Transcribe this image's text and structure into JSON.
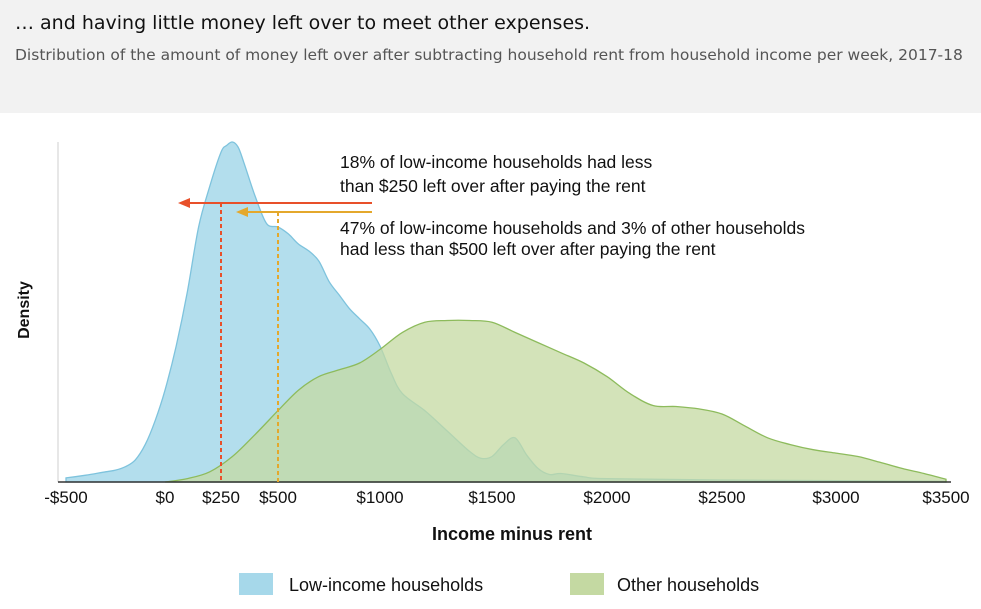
{
  "header": {
    "title": "… and having little money left over to meet other expenses.",
    "subtitle": "Distribution of the amount of money left over after subtracting household rent from household income per week, 2017-18"
  },
  "chart_data": {
    "type": "area",
    "xlabel": "Income minus rent",
    "ylabel": "Density",
    "xlim": [
      -500,
      3500
    ],
    "ylim": [
      0,
      1
    ],
    "x_ticks": [
      -500,
      0,
      250,
      500,
      1000,
      1500,
      2000,
      2500,
      3000,
      3500
    ],
    "x_tick_labels": [
      "-$500",
      "$0",
      "$250",
      "$500",
      "$1000",
      "$1500",
      "$2000",
      "$2500",
      "$3000",
      "$3500"
    ],
    "grid": false,
    "legend_position": "bottom",
    "series": [
      {
        "name": "Low-income households",
        "color": "#a6d8ea",
        "edge_color": "#7ec3dd",
        "points": [
          [
            -500,
            0.012
          ],
          [
            -400,
            0.02
          ],
          [
            -300,
            0.03
          ],
          [
            -250,
            0.035
          ],
          [
            -200,
            0.045
          ],
          [
            -150,
            0.065
          ],
          [
            -100,
            0.11
          ],
          [
            -50,
            0.18
          ],
          [
            0,
            0.27
          ],
          [
            50,
            0.4
          ],
          [
            100,
            0.56
          ],
          [
            150,
            0.75
          ],
          [
            200,
            0.87
          ],
          [
            250,
            0.97
          ],
          [
            275,
            0.99
          ],
          [
            300,
            1.0
          ],
          [
            325,
            0.985
          ],
          [
            350,
            0.94
          ],
          [
            400,
            0.84
          ],
          [
            450,
            0.76
          ],
          [
            500,
            0.75
          ],
          [
            550,
            0.73
          ],
          [
            600,
            0.7
          ],
          [
            650,
            0.68
          ],
          [
            700,
            0.65
          ],
          [
            750,
            0.59
          ],
          [
            800,
            0.55
          ],
          [
            850,
            0.51
          ],
          [
            900,
            0.48
          ],
          [
            950,
            0.45
          ],
          [
            1000,
            0.4
          ],
          [
            1050,
            0.32
          ],
          [
            1100,
            0.26
          ],
          [
            1200,
            0.21
          ],
          [
            1300,
            0.15
          ],
          [
            1400,
            0.09
          ],
          [
            1450,
            0.07
          ],
          [
            1500,
            0.075
          ],
          [
            1550,
            0.11
          ],
          [
            1600,
            0.13
          ],
          [
            1650,
            0.08
          ],
          [
            1700,
            0.04
          ],
          [
            1750,
            0.022
          ],
          [
            1800,
            0.025
          ],
          [
            1900,
            0.015
          ],
          [
            2000,
            0.01
          ],
          [
            2500,
            0.006
          ],
          [
            3000,
            0.004
          ],
          [
            3500,
            0.002
          ]
        ]
      },
      {
        "name": "Other households",
        "color": "#c4d9a2",
        "edge_color": "#8dbb5c",
        "points": [
          [
            0,
            0.0
          ],
          [
            100,
            0.01
          ],
          [
            200,
            0.03
          ],
          [
            300,
            0.075
          ],
          [
            400,
            0.14
          ],
          [
            500,
            0.21
          ],
          [
            600,
            0.27
          ],
          [
            700,
            0.31
          ],
          [
            800,
            0.33
          ],
          [
            900,
            0.35
          ],
          [
            1000,
            0.39
          ],
          [
            1100,
            0.44
          ],
          [
            1200,
            0.47
          ],
          [
            1300,
            0.475
          ],
          [
            1400,
            0.475
          ],
          [
            1500,
            0.47
          ],
          [
            1600,
            0.44
          ],
          [
            1700,
            0.41
          ],
          [
            1800,
            0.38
          ],
          [
            1900,
            0.35
          ],
          [
            2000,
            0.31
          ],
          [
            2100,
            0.26
          ],
          [
            2200,
            0.225
          ],
          [
            2300,
            0.222
          ],
          [
            2400,
            0.215
          ],
          [
            2500,
            0.2
          ],
          [
            2600,
            0.165
          ],
          [
            2700,
            0.13
          ],
          [
            2800,
            0.11
          ],
          [
            2900,
            0.095
          ],
          [
            3000,
            0.085
          ],
          [
            3100,
            0.075
          ],
          [
            3200,
            0.058
          ],
          [
            3300,
            0.04
          ],
          [
            3400,
            0.025
          ],
          [
            3500,
            0.008
          ]
        ]
      }
    ],
    "thresholds": [
      {
        "x": 250,
        "color": "#e8502a"
      },
      {
        "x": 500,
        "color": "#e4a82c"
      }
    ],
    "annotations": [
      {
        "lines": [
          "18% of low-income households had less",
          "than $250 left over after paying the rent"
        ],
        "color": "#e8502a"
      },
      {
        "lines": [
          "47% of low-income households and 3% of other households",
          "had less than $500 left over after paying the rent"
        ],
        "color": "#e4a82c"
      }
    ]
  }
}
